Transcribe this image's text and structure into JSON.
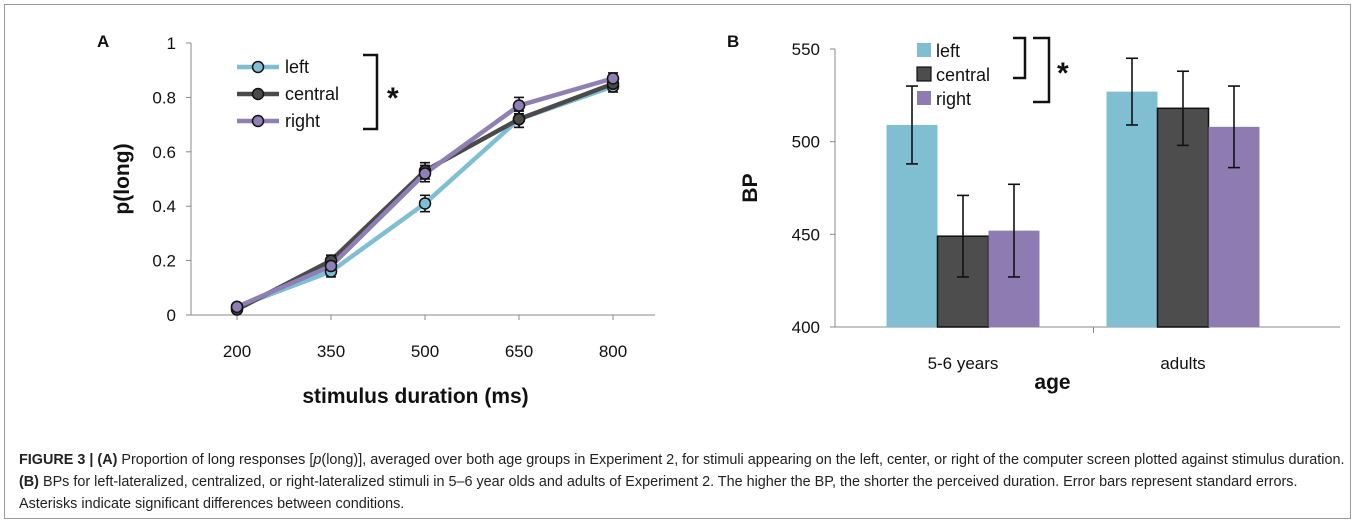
{
  "panel_a": {
    "label": "A",
    "significance": "*",
    "chart_data": {
      "type": "line",
      "xlabel": "stimulus duration (ms)",
      "ylabel": "p(long)",
      "x": [
        200,
        350,
        500,
        650,
        800
      ],
      "ylim": [
        0,
        1
      ],
      "yticks": [
        "0",
        "0.2",
        "0.4",
        "0.6",
        "0.8",
        "1"
      ],
      "xticks": [
        "200",
        "350",
        "500",
        "650",
        "800"
      ],
      "legend_position": "top-left",
      "series": [
        {
          "name": "left",
          "color": "#7fbfd6",
          "values": [
            0.03,
            0.16,
            0.41,
            0.72,
            0.84
          ],
          "errors": [
            0.01,
            0.02,
            0.03,
            0.03,
            0.02
          ]
        },
        {
          "name": "central",
          "color": "#4a4a4a",
          "values": [
            0.02,
            0.2,
            0.53,
            0.72,
            0.85
          ],
          "errors": [
            0.01,
            0.02,
            0.03,
            0.03,
            0.02
          ]
        },
        {
          "name": "right",
          "color": "#8e7fb5",
          "values": [
            0.03,
            0.18,
            0.52,
            0.77,
            0.87
          ],
          "errors": [
            0.01,
            0.02,
            0.03,
            0.03,
            0.02
          ]
        }
      ]
    }
  },
  "panel_b": {
    "label": "B",
    "significance": "*",
    "chart_data": {
      "type": "bar",
      "xlabel": "age",
      "ylabel": "BP",
      "categories": [
        "5-6 years",
        "adults"
      ],
      "ylim": [
        400,
        550
      ],
      "yticks": [
        "400",
        "450",
        "500",
        "550"
      ],
      "legend_position": "top-left",
      "series": [
        {
          "name": "left",
          "color": "#7fbfd1",
          "values": [
            509,
            527
          ],
          "errors": [
            21,
            18
          ]
        },
        {
          "name": "central",
          "color": "#4d4d4d",
          "values": [
            449,
            518
          ],
          "errors": [
            22,
            20
          ]
        },
        {
          "name": "right",
          "color": "#8d7bb2",
          "values": [
            452,
            508
          ],
          "errors": [
            25,
            22
          ]
        }
      ]
    }
  },
  "caption": {
    "figure_label": "FIGURE 3 |",
    "part_a_label": "(A)",
    "part_a_text_1": " Proportion of long responses [",
    "part_a_italic": "p",
    "part_a_text_2": "(long)], averaged over both age groups in Experiment 2, for stimuli appearing on the left, center, or right of the computer screen plotted against stimulus duration. ",
    "part_b_label": "(B)",
    "part_b_text": " BPs for left-lateralized, centralized, or right-lateralized stimuli in 5–6 year olds and adults of Experiment 2. The higher the BP, the shorter the perceived duration. Error bars represent standard errors. Asterisks indicate significant differences between conditions."
  }
}
